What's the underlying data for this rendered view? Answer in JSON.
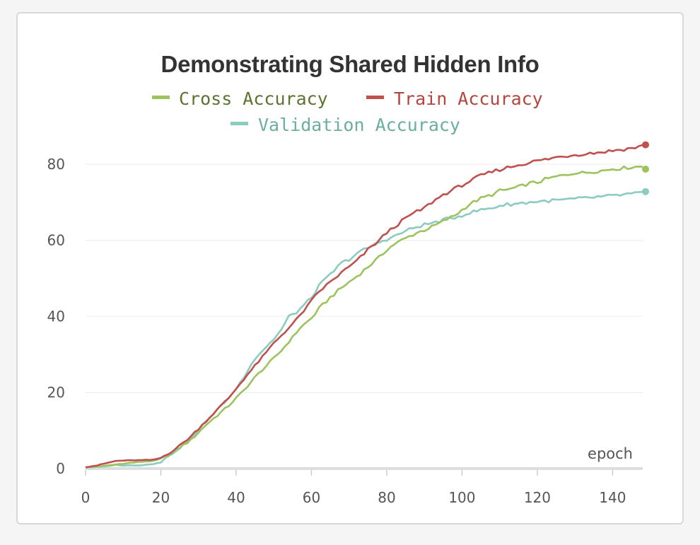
{
  "chart_data": {
    "type": "line",
    "title": "Demonstrating Shared Hidden Info",
    "xlabel": "epoch",
    "ylabel": "",
    "xlim": [
      0,
      148
    ],
    "ylim": [
      0,
      85
    ],
    "x_ticks": [
      0,
      20,
      40,
      60,
      80,
      100,
      120,
      140
    ],
    "y_ticks": [
      0,
      20,
      40,
      60,
      80
    ],
    "grid": true,
    "legend_position": "top-center",
    "series": [
      {
        "name": "Cross Accuracy",
        "color": "#9dc35f",
        "points": [
          [
            0,
            0.3
          ],
          [
            5,
            0.7
          ],
          [
            10,
            1.3
          ],
          [
            15,
            1.8
          ],
          [
            18,
            2.0
          ],
          [
            20,
            2.5
          ],
          [
            22,
            3.5
          ],
          [
            25,
            5.5
          ],
          [
            28,
            7.5
          ],
          [
            30,
            9.5
          ],
          [
            32,
            11.5
          ],
          [
            35,
            14
          ],
          [
            38,
            16.5
          ],
          [
            40,
            18.5
          ],
          [
            42,
            20.5
          ],
          [
            45,
            24
          ],
          [
            48,
            27
          ],
          [
            50,
            29
          ],
          [
            52,
            31
          ],
          [
            55,
            34.5
          ],
          [
            57,
            37
          ],
          [
            60,
            39.5
          ],
          [
            62,
            42
          ],
          [
            65,
            45
          ],
          [
            68,
            47.5
          ],
          [
            70,
            49
          ],
          [
            72,
            50.5
          ],
          [
            75,
            53
          ],
          [
            78,
            55.5
          ],
          [
            80,
            57.5
          ],
          [
            82,
            59
          ],
          [
            85,
            60.5
          ],
          [
            88,
            62
          ],
          [
            90,
            62.7
          ],
          [
            92,
            63.5
          ],
          [
            95,
            65
          ],
          [
            98,
            66.5
          ],
          [
            100,
            68
          ],
          [
            102,
            69.5
          ],
          [
            105,
            71
          ],
          [
            108,
            72
          ],
          [
            110,
            73
          ],
          [
            112,
            73.3
          ],
          [
            115,
            74
          ],
          [
            118,
            75
          ],
          [
            120,
            75.2
          ],
          [
            122,
            76
          ],
          [
            125,
            76.7
          ],
          [
            128,
            77.3
          ],
          [
            130,
            77.8
          ],
          [
            132,
            77.7
          ],
          [
            135,
            78.1
          ],
          [
            138,
            78.4
          ],
          [
            140,
            78.8
          ],
          [
            142,
            78.9
          ],
          [
            145,
            79.2
          ],
          [
            148,
            79.5
          ]
        ],
        "last_value": 78.7
      },
      {
        "name": "Train Accuracy",
        "color": "#c0504d",
        "points": [
          [
            0,
            0.4
          ],
          [
            3,
            0.8
          ],
          [
            5,
            1.3
          ],
          [
            8,
            2.0
          ],
          [
            10,
            2.1
          ],
          [
            15,
            2.2
          ],
          [
            18,
            2.3
          ],
          [
            20,
            2.8
          ],
          [
            22,
            4.0
          ],
          [
            25,
            6.0
          ],
          [
            28,
            8.5
          ],
          [
            30,
            10.5
          ],
          [
            32,
            12.5
          ],
          [
            35,
            15.5
          ],
          [
            38,
            18.5
          ],
          [
            40,
            21
          ],
          [
            42,
            23.5
          ],
          [
            45,
            27
          ],
          [
            48,
            30.5
          ],
          [
            50,
            33
          ],
          [
            52,
            35
          ],
          [
            55,
            38
          ],
          [
            58,
            41.5
          ],
          [
            60,
            44
          ],
          [
            62,
            46.5
          ],
          [
            65,
            49
          ],
          [
            68,
            51.5
          ],
          [
            70,
            53
          ],
          [
            72,
            54.5
          ],
          [
            75,
            57.5
          ],
          [
            78,
            60
          ],
          [
            80,
            62
          ],
          [
            82,
            63.5
          ],
          [
            84,
            65
          ],
          [
            86,
            66.5
          ],
          [
            88,
            67.5
          ],
          [
            90,
            68.5
          ],
          [
            92,
            70
          ],
          [
            95,
            72
          ],
          [
            98,
            73.5
          ],
          [
            100,
            74.5
          ],
          [
            102,
            75.5
          ],
          [
            105,
            77
          ],
          [
            108,
            78
          ],
          [
            110,
            78.6
          ],
          [
            112,
            79.1
          ],
          [
            115,
            79.8
          ],
          [
            118,
            80.5
          ],
          [
            120,
            80.9
          ],
          [
            122,
            81.2
          ],
          [
            125,
            81.8
          ],
          [
            128,
            82.2
          ],
          [
            130,
            82.5
          ],
          [
            132,
            82.7
          ],
          [
            135,
            83
          ],
          [
            138,
            83.3
          ],
          [
            140,
            83.6
          ],
          [
            142,
            83.8
          ],
          [
            145,
            84.2
          ],
          [
            148,
            84.8
          ]
        ],
        "last_value": 85.1
      },
      {
        "name": "Validation Accuracy",
        "color": "#8ccbbf",
        "points": [
          [
            0,
            0.3
          ],
          [
            5,
            0.5
          ],
          [
            8,
            1.0
          ],
          [
            10,
            0.8
          ],
          [
            15,
            0.9
          ],
          [
            18,
            1.2
          ],
          [
            20,
            1.8
          ],
          [
            22,
            3.2
          ],
          [
            25,
            5.5
          ],
          [
            28,
            8.0
          ],
          [
            30,
            10.0
          ],
          [
            32,
            12.5
          ],
          [
            35,
            15.5
          ],
          [
            38,
            18.5
          ],
          [
            40,
            21
          ],
          [
            42,
            24
          ],
          [
            44,
            27.5
          ],
          [
            46,
            30
          ],
          [
            48,
            32
          ],
          [
            50,
            34
          ],
          [
            52,
            36.5
          ],
          [
            54,
            40
          ],
          [
            56,
            41
          ],
          [
            58,
            43
          ],
          [
            60,
            45
          ],
          [
            62,
            48
          ],
          [
            64,
            50
          ],
          [
            66,
            52
          ],
          [
            68,
            54
          ],
          [
            70,
            55
          ],
          [
            72,
            56.5
          ],
          [
            74,
            57.5
          ],
          [
            76,
            58.5
          ],
          [
            78,
            59.5
          ],
          [
            80,
            60.3
          ],
          [
            82,
            61
          ],
          [
            84,
            62
          ],
          [
            86,
            62.8
          ],
          [
            88,
            63.5
          ],
          [
            90,
            64.1
          ],
          [
            92,
            64.5
          ],
          [
            95,
            65.3
          ],
          [
            98,
            66
          ],
          [
            100,
            66.6
          ],
          [
            102,
            67.2
          ],
          [
            105,
            68
          ],
          [
            108,
            68.5
          ],
          [
            110,
            69.1
          ],
          [
            112,
            69.4
          ],
          [
            115,
            69.7
          ],
          [
            118,
            70
          ],
          [
            120,
            70.2
          ],
          [
            122,
            70.3
          ],
          [
            125,
            70.5
          ],
          [
            128,
            70.7
          ],
          [
            130,
            70.9
          ],
          [
            132,
            71
          ],
          [
            135,
            71.3
          ],
          [
            138,
            71.5
          ],
          [
            140,
            71.7
          ],
          [
            142,
            71.9
          ],
          [
            145,
            72.2
          ],
          [
            148,
            72.5
          ]
        ],
        "last_value": 72.8
      }
    ]
  }
}
